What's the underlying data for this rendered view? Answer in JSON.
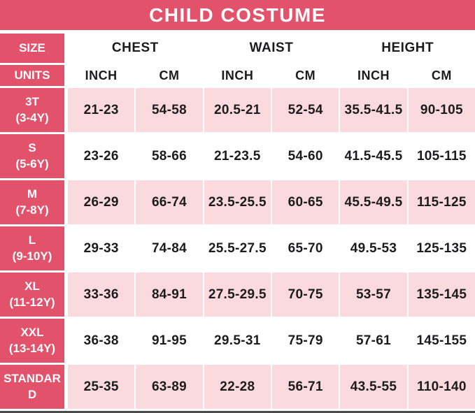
{
  "colors": {
    "accent_red": "#e2526b",
    "row_pink": "#fadadf",
    "text_dark": "#1c1c1e",
    "bottom_line": "#4a4a4a"
  },
  "chart_data": {
    "type": "table",
    "title": "CHILD COSTUME",
    "header": {
      "size_label": "SIZE",
      "units_label": "UNITS",
      "groups": [
        {
          "label": "CHEST"
        },
        {
          "label": "WAIST"
        },
        {
          "label": "HEIGHT"
        }
      ],
      "units": [
        "INCH",
        "CM",
        "INCH",
        "CM",
        "INCH",
        "CM"
      ]
    },
    "columns": [
      "SIZE",
      "CHEST INCH",
      "CHEST CM",
      "WAIST INCH",
      "WAIST CM",
      "HEIGHT INCH",
      "HEIGHT CM"
    ],
    "rows": [
      {
        "size": "3T",
        "age": "(3-4Y)",
        "values": [
          "21-23",
          "54-58",
          "20.5-21",
          "52-54",
          "35.5-41.5",
          "90-105"
        ]
      },
      {
        "size": "S",
        "age": "(5-6Y)",
        "values": [
          "23-26",
          "58-66",
          "21-23.5",
          "54-60",
          "41.5-45.5",
          "105-115"
        ]
      },
      {
        "size": "M",
        "age": "(7-8Y)",
        "values": [
          "26-29",
          "66-74",
          "23.5-25.5",
          "60-65",
          "45.5-49.5",
          "115-125"
        ]
      },
      {
        "size": "L",
        "age": "(9-10Y)",
        "values": [
          "29-33",
          "74-84",
          "25.5-27.5",
          "65-70",
          "49.5-53",
          "125-135"
        ]
      },
      {
        "size": "XL",
        "age": "(11-12Y)",
        "values": [
          "33-36",
          "84-91",
          "27.5-29.5",
          "70-75",
          "53-57",
          "135-145"
        ]
      },
      {
        "size": "XXL",
        "age": "(13-14Y)",
        "values": [
          "36-38",
          "91-95",
          "29.5-31",
          "75-79",
          "57-61",
          "145-155"
        ]
      },
      {
        "size": "STANDARD",
        "age": "",
        "values": [
          "25-35",
          "63-89",
          "22-28",
          "56-71",
          "43.5-55",
          "110-140"
        ]
      }
    ]
  }
}
